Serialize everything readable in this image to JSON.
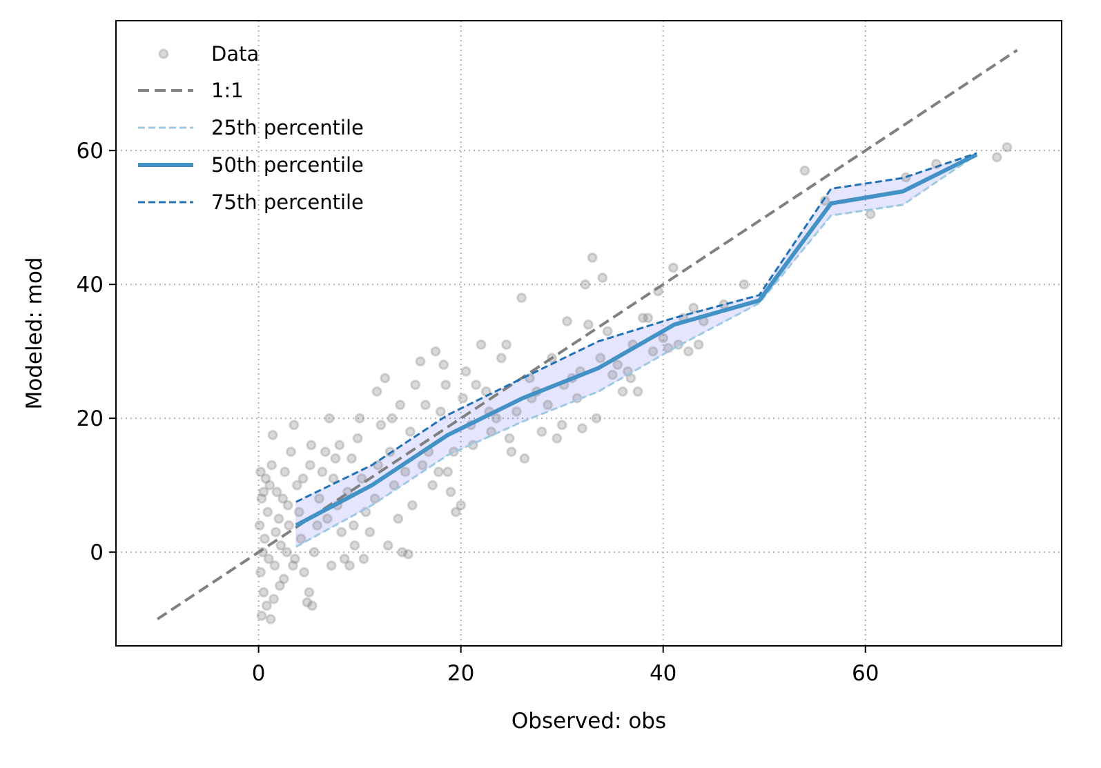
{
  "chart_data": {
    "type": "scatter",
    "xlabel": "Observed: obs",
    "ylabel": "Modeled: mod",
    "xlim": [
      -14.1,
      79.4
    ],
    "ylim": [
      -14.0,
      79.4
    ],
    "xticks": [
      "0",
      "20",
      "40",
      "60"
    ],
    "yticks": [
      "0",
      "20",
      "40",
      "60"
    ],
    "xtick_values": [
      0,
      20,
      40,
      60
    ],
    "ytick_values": [
      0,
      20,
      40,
      60
    ],
    "grid": true,
    "legend_placement": "top-left",
    "colors": {
      "data": "#808080",
      "one_to_one": "#808080",
      "p25": "#9ecae1",
      "p50": "#4292c6",
      "p75": "#2171b5",
      "band": "#e0e0fb"
    },
    "legend": [
      "Data",
      "1:1",
      "25th percentile",
      "50th percentile",
      "75th percentile"
    ],
    "one_to_one": {
      "x": [
        -10,
        75
      ],
      "y": [
        -10,
        75
      ]
    },
    "percentiles": {
      "x": [
        3.7,
        11.2,
        18.7,
        26.1,
        33.6,
        41.1,
        49.5,
        56.6,
        63.7,
        71.0
      ],
      "p25": [
        0.8,
        7.0,
        14.5,
        19.5,
        24.0,
        30.5,
        37.2,
        50.3,
        51.9,
        59.4
      ],
      "p50": [
        4.0,
        10.0,
        17.5,
        23.0,
        27.5,
        34.0,
        37.6,
        52.1,
        53.9,
        59.4
      ],
      "p75": [
        7.5,
        13.0,
        20.5,
        26.0,
        31.5,
        35.0,
        38.4,
        54.3,
        55.9,
        59.6
      ]
    },
    "points": [
      [
        0.2,
        12
      ],
      [
        0.3,
        8
      ],
      [
        0.1,
        4
      ],
      [
        0.4,
        0
      ],
      [
        0.2,
        -3
      ],
      [
        0.5,
        -6
      ],
      [
        0.3,
        -9.5
      ],
      [
        1.2,
        -10
      ],
      [
        0.8,
        -8
      ],
      [
        1.5,
        -7
      ],
      [
        0.6,
        2
      ],
      [
        0.9,
        6
      ],
      [
        1.1,
        10
      ],
      [
        0.7,
        11
      ],
      [
        1.3,
        13
      ],
      [
        1.8,
        9
      ],
      [
        2.0,
        5
      ],
      [
        2.2,
        1
      ],
      [
        1.6,
        -2
      ],
      [
        2.5,
        -4
      ],
      [
        2.8,
        0
      ],
      [
        3.0,
        4
      ],
      [
        2.4,
        8
      ],
      [
        2.6,
        12
      ],
      [
        3.2,
        15
      ],
      [
        1.4,
        17.5
      ],
      [
        3.5,
        19
      ],
      [
        3.8,
        10
      ],
      [
        4.0,
        6
      ],
      [
        4.2,
        2
      ],
      [
        3.6,
        -1
      ],
      [
        4.5,
        -3
      ],
      [
        5.0,
        -6
      ],
      [
        5.3,
        -8
      ],
      [
        4.8,
        -7.5
      ],
      [
        5.5,
        0
      ],
      [
        5.8,
        4
      ],
      [
        6.0,
        8
      ],
      [
        6.3,
        12
      ],
      [
        6.6,
        15
      ],
      [
        5.2,
        16
      ],
      [
        7.0,
        20
      ],
      [
        7.4,
        11
      ],
      [
        7.8,
        7
      ],
      [
        8.2,
        3
      ],
      [
        8.5,
        -1
      ],
      [
        9.0,
        -2
      ],
      [
        9.5,
        1
      ],
      [
        8.8,
        9
      ],
      [
        9.2,
        14
      ],
      [
        9.8,
        17
      ],
      [
        10.2,
        11
      ],
      [
        10.6,
        6
      ],
      [
        11.0,
        3
      ],
      [
        11.5,
        8
      ],
      [
        11.8,
        13
      ],
      [
        12.1,
        19
      ],
      [
        12.5,
        26
      ],
      [
        11.7,
        24
      ],
      [
        13.0,
        15
      ],
      [
        13.4,
        10
      ],
      [
        13.8,
        5
      ],
      [
        14.2,
        0
      ],
      [
        14.8,
        -0.3
      ],
      [
        14.5,
        12
      ],
      [
        15.0,
        18
      ],
      [
        15.5,
        25
      ],
      [
        16.0,
        28.5
      ],
      [
        16.5,
        22
      ],
      [
        16.8,
        15
      ],
      [
        17.2,
        10
      ],
      [
        17.5,
        30
      ],
      [
        18.0,
        21
      ],
      [
        18.3,
        28
      ],
      [
        18.7,
        12
      ],
      [
        19.0,
        9
      ],
      [
        19.5,
        6
      ],
      [
        20.0,
        7
      ],
      [
        20.2,
        23
      ],
      [
        20.5,
        27
      ],
      [
        21.0,
        19
      ],
      [
        21.5,
        25
      ],
      [
        22.0,
        31
      ],
      [
        22.5,
        24
      ],
      [
        23.0,
        18
      ],
      [
        23.5,
        20
      ],
      [
        24.0,
        29
      ],
      [
        24.5,
        31
      ],
      [
        25.0,
        15
      ],
      [
        25.5,
        21
      ],
      [
        26.0,
        38
      ],
      [
        26.3,
        14
      ],
      [
        26.8,
        26
      ],
      [
        27.5,
        24
      ],
      [
        28.0,
        18
      ],
      [
        28.6,
        22
      ],
      [
        29.0,
        29
      ],
      [
        29.5,
        17
      ],
      [
        30.0,
        19
      ],
      [
        30.5,
        34.5
      ],
      [
        31.0,
        26
      ],
      [
        31.5,
        23
      ],
      [
        32.0,
        18.5
      ],
      [
        32.3,
        40
      ],
      [
        32.6,
        34
      ],
      [
        33.0,
        44
      ],
      [
        33.4,
        20
      ],
      [
        33.8,
        29
      ],
      [
        34.0,
        41
      ],
      [
        34.5,
        33
      ],
      [
        35.0,
        26.5
      ],
      [
        35.5,
        28
      ],
      [
        36.0,
        24
      ],
      [
        36.5,
        27
      ],
      [
        37.0,
        31
      ],
      [
        37.5,
        24
      ],
      [
        38.0,
        35
      ],
      [
        38.5,
        35
      ],
      [
        39.0,
        30
      ],
      [
        39.5,
        39
      ],
      [
        40.0,
        32
      ],
      [
        40.5,
        30.5
      ],
      [
        41.0,
        42.5
      ],
      [
        41.5,
        31
      ],
      [
        42.0,
        35
      ],
      [
        42.5,
        30
      ],
      [
        43.0,
        36.5
      ],
      [
        43.5,
        31
      ],
      [
        44.0,
        34.5
      ],
      [
        46.0,
        37
      ],
      [
        48.0,
        40
      ],
      [
        54.0,
        57
      ],
      [
        56.0,
        52.5
      ],
      [
        60.5,
        50.5
      ],
      [
        64.0,
        56
      ],
      [
        67.0,
        58
      ],
      [
        73.0,
        59
      ],
      [
        74.0,
        60.5
      ],
      [
        2.1,
        -5
      ],
      [
        1.0,
        -1
      ],
      [
        0.5,
        9
      ],
      [
        1.7,
        3
      ],
      [
        2.9,
        7
      ],
      [
        3.4,
        -2
      ],
      [
        4.4,
        11
      ],
      [
        5.1,
        13
      ],
      [
        6.8,
        5
      ],
      [
        7.2,
        -2
      ],
      [
        7.6,
        14
      ],
      [
        8.0,
        16
      ],
      [
        9.4,
        4
      ],
      [
        10.0,
        20
      ],
      [
        10.4,
        -1
      ],
      [
        12.8,
        1
      ],
      [
        13.2,
        20
      ],
      [
        14.0,
        22
      ],
      [
        15.2,
        7
      ],
      [
        16.2,
        13
      ],
      [
        17.8,
        12
      ],
      [
        18.5,
        25
      ],
      [
        19.3,
        15
      ],
      [
        21.2,
        16
      ],
      [
        22.8,
        21
      ],
      [
        24.8,
        17
      ],
      [
        27.0,
        23
      ],
      [
        30.2,
        25
      ],
      [
        31.8,
        27
      ],
      [
        36.8,
        26
      ]
    ]
  }
}
